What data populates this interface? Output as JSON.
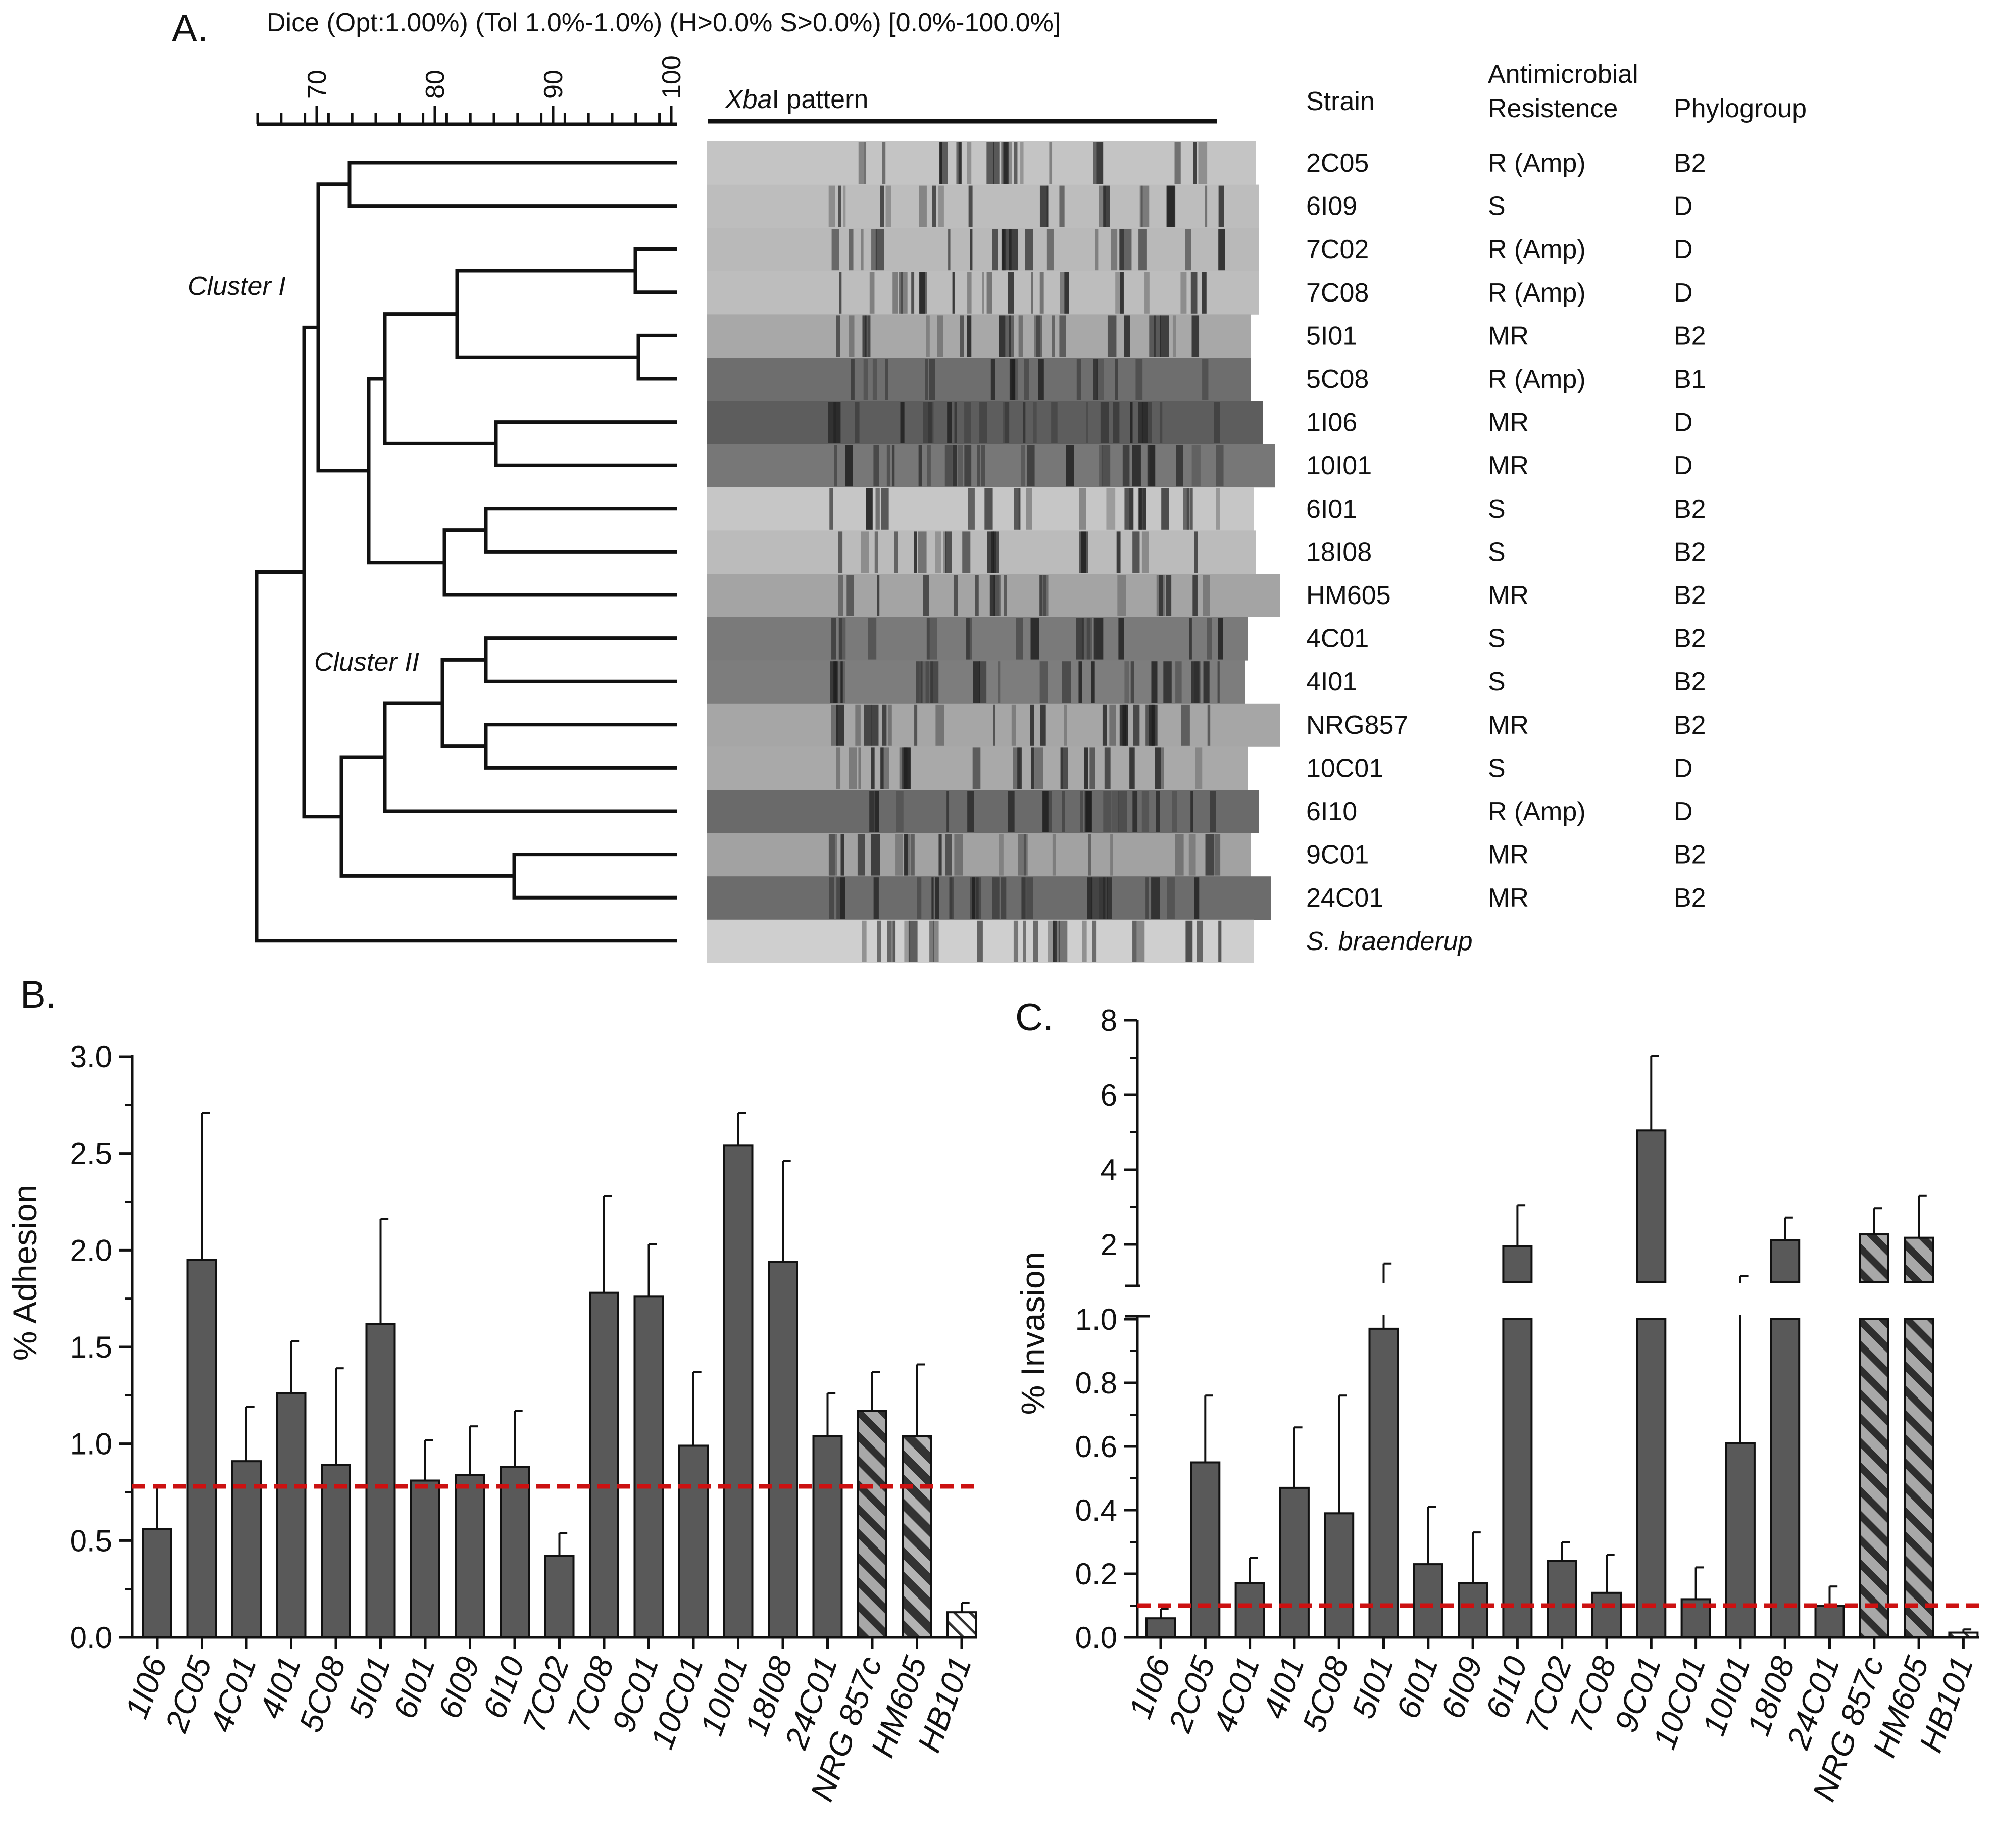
{
  "panelA": {
    "label": "A.",
    "header": "Dice (Opt:1.00%) (Tol 1.0%-1.0%) (H>0.0% S>0.0%) [0.0%-100.0%]",
    "scale_ticks": [
      "70",
      "80",
      "90",
      "100"
    ],
    "gel_title_italic": "Xba",
    "gel_title_rest": "I pattern",
    "col_strain": "Strain",
    "col_amr_line1": "Antimicrobial",
    "col_amr_line2": "Resistence",
    "col_phylo": "Phylogroup",
    "cluster1": "Cluster I",
    "cluster2": "Cluster II",
    "rows": [
      {
        "strain": "2C05",
        "amr": "R (Amp)",
        "phylo": "B2"
      },
      {
        "strain": "6I09",
        "amr": "S",
        "phylo": "D"
      },
      {
        "strain": "7C02",
        "amr": "R (Amp)",
        "phylo": "D"
      },
      {
        "strain": "7C08",
        "amr": "R (Amp)",
        "phylo": "D"
      },
      {
        "strain": "5I01",
        "amr": "MR",
        "phylo": "B2"
      },
      {
        "strain": "5C08",
        "amr": "R (Amp)",
        "phylo": "B1"
      },
      {
        "strain": "1I06",
        "amr": "MR",
        "phylo": "D"
      },
      {
        "strain": "10I01",
        "amr": "MR",
        "phylo": "D"
      },
      {
        "strain": "6I01",
        "amr": "S",
        "phylo": "B2"
      },
      {
        "strain": "18I08",
        "amr": "S",
        "phylo": "B2"
      },
      {
        "strain": "HM605",
        "amr": "MR",
        "phylo": "B2"
      },
      {
        "strain": "4C01",
        "amr": "S",
        "phylo": "B2"
      },
      {
        "strain": "4I01",
        "amr": "S",
        "phylo": "B2"
      },
      {
        "strain": "NRG857",
        "amr": "MR",
        "phylo": "B2"
      },
      {
        "strain": "10C01",
        "amr": "S",
        "phylo": "D"
      },
      {
        "strain": "6I10",
        "amr": "R (Amp)",
        "phylo": "D"
      },
      {
        "strain": "9C01",
        "amr": "MR",
        "phylo": "B2"
      },
      {
        "strain": "24C01",
        "amr": "MR",
        "phylo": "B2"
      },
      {
        "strain": "S. braenderup",
        "amr": "",
        "phylo": ""
      }
    ]
  },
  "chart_data": [
    {
      "type": "bar",
      "panel": "B.",
      "ylabel": "% Adhesion",
      "ylim": [
        0,
        3.0
      ],
      "y_ticks": [
        "0.0",
        "0.5",
        "1.0",
        "1.5",
        "2.0",
        "2.5",
        "3.0"
      ],
      "categories": [
        "1I06",
        "2C05",
        "4C01",
        "4I01",
        "5C08",
        "5I01",
        "6I01",
        "6I09",
        "6I10",
        "7C02",
        "7C08",
        "9C01",
        "10C01",
        "10I01",
        "18I08",
        "24C01",
        "NRG 857c",
        "HM605",
        "HB101"
      ],
      "values": [
        0.56,
        1.95,
        0.91,
        1.26,
        0.89,
        1.62,
        0.81,
        0.84,
        0.88,
        0.42,
        1.78,
        1.76,
        0.99,
        2.54,
        1.94,
        1.04,
        1.17,
        1.04,
        0.13
      ],
      "errors": [
        0.22,
        0.76,
        0.28,
        0.27,
        0.5,
        0.54,
        0.21,
        0.25,
        0.29,
        0.12,
        0.5,
        0.27,
        0.38,
        0.17,
        0.52,
        0.22,
        0.2,
        0.37,
        0.05
      ],
      "styles": [
        "solid",
        "solid",
        "solid",
        "solid",
        "solid",
        "solid",
        "solid",
        "solid",
        "solid",
        "solid",
        "solid",
        "solid",
        "solid",
        "solid",
        "solid",
        "solid",
        "hatch-gray",
        "hatch-dark",
        "hatch-white"
      ],
      "threshold": 0.78,
      "bar_color": "#595959",
      "threshold_color": "#cc1111"
    },
    {
      "type": "bar",
      "panel": "C.",
      "ylabel": "% Invasion",
      "broken_axis": true,
      "ylim_lower": [
        0,
        1.0
      ],
      "ylim_upper": [
        1.0,
        8
      ],
      "y_ticks_lower": [
        "0.0",
        "0.2",
        "0.4",
        "0.6",
        "0.8",
        "1.0"
      ],
      "y_ticks_upper": [
        "2",
        "4",
        "6",
        "8"
      ],
      "categories": [
        "1I06",
        "2C05",
        "4C01",
        "4I01",
        "5C08",
        "5I01",
        "6I01",
        "6I09",
        "6I10",
        "7C02",
        "7C08",
        "9C01",
        "10C01",
        "10I01",
        "18I08",
        "24C01",
        "NRG 857c",
        "HM605",
        "HB101"
      ],
      "values": [
        0.06,
        0.55,
        0.17,
        0.47,
        0.39,
        0.97,
        0.23,
        0.17,
        1.95,
        0.24,
        0.14,
        5.05,
        0.12,
        0.61,
        2.12,
        0.1,
        2.27,
        2.18,
        0.015
      ],
      "errors": [
        0.03,
        0.21,
        0.08,
        0.19,
        0.37,
        0.52,
        0.18,
        0.16,
        1.1,
        0.06,
        0.12,
        2.0,
        0.1,
        0.55,
        0.6,
        0.06,
        0.7,
        1.12,
        0.01
      ],
      "styles": [
        "solid",
        "solid",
        "solid",
        "solid",
        "solid",
        "solid",
        "solid",
        "solid",
        "solid",
        "solid",
        "solid",
        "solid",
        "solid",
        "solid",
        "solid",
        "solid",
        "hatch-gray",
        "hatch-gray",
        "hatch-white"
      ],
      "threshold": 0.1,
      "bar_color": "#595959",
      "threshold_color": "#cc1111"
    }
  ]
}
